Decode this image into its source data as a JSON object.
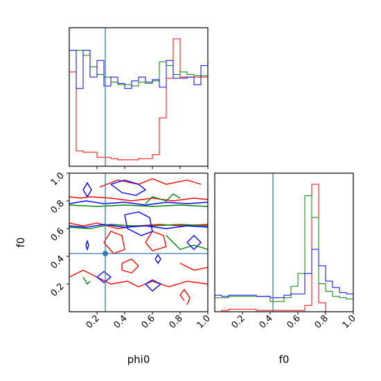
{
  "chart_data": {
    "type": "corner",
    "parameters": [
      "phi0",
      "f0"
    ],
    "colors": {
      "red": "#ff0000",
      "green": "#008000",
      "blue": "#0000ff",
      "truth": "#3a78b5"
    },
    "truth": {
      "phi0": 0.26,
      "f0": 0.42
    },
    "phi0_range": [
      0.0,
      1.0
    ],
    "f0_range": [
      0.0,
      1.0
    ],
    "tick_labels": {
      "phi0": [
        "0.2",
        "0.4",
        "0.6",
        "0.8",
        "1.0"
      ],
      "f0": [
        "0.2",
        "0.4",
        "0.6",
        "0.8",
        "1.0"
      ]
    },
    "hist_phi0": {
      "bins": [
        0.0,
        0.05,
        0.1,
        0.15,
        0.2,
        0.25,
        0.3,
        0.35,
        0.4,
        0.45,
        0.5,
        0.55,
        0.6,
        0.65,
        0.7,
        0.75,
        0.8,
        0.85,
        0.9,
        0.95,
        1.0
      ],
      "series": [
        {
          "color": "red",
          "values": [
            0.74,
            0.12,
            0.11,
            0.11,
            0.07,
            0.07,
            0.06,
            0.05,
            0.05,
            0.05,
            0.06,
            0.06,
            0.09,
            0.38,
            0.69,
            1.0,
            0.7,
            0.7,
            0.7,
            0.7
          ]
        },
        {
          "color": "green",
          "values": [
            0.91,
            0.91,
            0.87,
            0.78,
            0.72,
            0.7,
            0.66,
            0.64,
            0.64,
            0.63,
            0.66,
            0.65,
            0.67,
            0.82,
            0.79,
            0.72,
            0.74,
            0.72,
            0.71,
            0.71
          ]
        },
        {
          "color": "blue",
          "values": [
            0.91,
            0.61,
            0.91,
            0.7,
            0.83,
            0.63,
            0.7,
            0.65,
            0.61,
            0.67,
            0.7,
            0.66,
            0.68,
            0.62,
            0.83,
            0.69,
            0.69,
            0.7,
            0.64,
            0.79
          ]
        }
      ]
    },
    "hist_f0": {
      "bins": [
        0.0,
        0.05,
        0.1,
        0.15,
        0.2,
        0.25,
        0.3,
        0.35,
        0.4,
        0.45,
        0.5,
        0.55,
        0.6,
        0.65,
        0.7,
        0.75,
        0.8,
        0.85,
        0.9,
        0.95,
        1.0
      ],
      "series": [
        {
          "color": "red",
          "values": [
            0.0,
            0.01,
            0.02,
            0.02,
            0.02,
            0.02,
            0.01,
            0.01,
            0.01,
            0.01,
            0.01,
            0.01,
            0.01,
            0.05,
            1.0,
            0.07,
            0.0,
            0.0,
            0.0,
            0.0
          ]
        },
        {
          "color": "green",
          "values": [
            0.11,
            0.11,
            0.12,
            0.12,
            0.12,
            0.12,
            0.12,
            0.12,
            0.08,
            0.08,
            0.11,
            0.2,
            0.3,
            0.91,
            0.74,
            0.22,
            0.16,
            0.12,
            0.11,
            0.1
          ]
        },
        {
          "color": "blue",
          "values": [
            0.13,
            0.12,
            0.13,
            0.13,
            0.13,
            0.13,
            0.12,
            0.12,
            0.11,
            0.11,
            0.13,
            0.14,
            0.14,
            0.3,
            0.49,
            0.36,
            0.24,
            0.19,
            0.15,
            0.14
          ]
        }
      ]
    },
    "contours_2d": [
      {
        "color": "red",
        "lines": [
          [
            [
              0.0,
              0.83
            ],
            [
              0.08,
              0.82
            ],
            [
              0.15,
              0.83
            ],
            [
              0.3,
              0.82
            ],
            [
              0.45,
              0.8
            ],
            [
              0.6,
              0.82
            ],
            [
              0.75,
              0.8
            ],
            [
              0.9,
              0.82
            ],
            [
              1.0,
              0.81
            ]
          ],
          [
            [
              0.0,
              0.64
            ],
            [
              0.1,
              0.62
            ],
            [
              0.2,
              0.64
            ],
            [
              0.35,
              0.6
            ],
            [
              0.5,
              0.62
            ],
            [
              0.65,
              0.63
            ],
            [
              0.8,
              0.62
            ],
            [
              1.0,
              0.63
            ]
          ],
          [
            [
              0.22,
              0.9
            ],
            [
              0.35,
              0.95
            ],
            [
              0.5,
              0.92
            ],
            [
              0.6,
              0.96
            ],
            [
              0.7,
              0.92
            ],
            [
              0.85,
              0.95
            ],
            [
              0.95,
              0.92
            ]
          ],
          [
            [
              0.25,
              0.5
            ],
            [
              0.3,
              0.58
            ],
            [
              0.38,
              0.55
            ],
            [
              0.4,
              0.45
            ],
            [
              0.32,
              0.42
            ],
            [
              0.25,
              0.5
            ]
          ],
          [
            [
              0.38,
              0.35
            ],
            [
              0.45,
              0.38
            ],
            [
              0.5,
              0.33
            ],
            [
              0.45,
              0.28
            ],
            [
              0.38,
              0.3
            ],
            [
              0.38,
              0.35
            ]
          ],
          [
            [
              0.55,
              0.5
            ],
            [
              0.6,
              0.58
            ],
            [
              0.68,
              0.55
            ],
            [
              0.7,
              0.47
            ],
            [
              0.6,
              0.44
            ],
            [
              0.55,
              0.5
            ]
          ],
          [
            [
              0.0,
              0.25
            ],
            [
              0.1,
              0.3
            ],
            [
              0.2,
              0.25
            ],
            [
              0.3,
              0.2
            ],
            [
              0.42,
              0.22
            ],
            [
              0.5,
              0.18
            ],
            [
              0.6,
              0.22
            ],
            [
              0.72,
              0.18
            ],
            [
              0.85,
              0.22
            ],
            [
              1.0,
              0.2
            ]
          ],
          [
            [
              0.8,
              0.35
            ],
            [
              0.9,
              0.3
            ],
            [
              1.0,
              0.32
            ]
          ],
          [
            [
              0.83,
              0.08
            ],
            [
              0.8,
              0.12
            ],
            [
              0.83,
              0.16
            ],
            [
              0.87,
              0.1
            ],
            [
              0.85,
              0.05
            ]
          ]
        ]
      },
      {
        "color": "green",
        "lines": [
          [
            [
              0.0,
              0.77
            ],
            [
              0.2,
              0.76
            ],
            [
              0.4,
              0.77
            ],
            [
              0.6,
              0.76
            ],
            [
              0.8,
              0.77
            ],
            [
              1.0,
              0.76
            ]
          ],
          [
            [
              0.0,
              0.61
            ],
            [
              0.15,
              0.6
            ],
            [
              0.3,
              0.63
            ],
            [
              0.45,
              0.62
            ],
            [
              0.6,
              0.62
            ],
            [
              0.8,
              0.63
            ],
            [
              1.0,
              0.62
            ]
          ],
          [
            [
              0.55,
              0.78
            ],
            [
              0.6,
              0.83
            ],
            [
              0.7,
              0.8
            ],
            [
              0.75,
              0.85
            ],
            [
              0.8,
              0.82
            ]
          ],
          [
            [
              0.7,
              0.55
            ],
            [
              0.75,
              0.5
            ],
            [
              0.8,
              0.45
            ],
            [
              0.9,
              0.48
            ],
            [
              1.0,
              0.45
            ]
          ],
          [
            [
              0.1,
              0.25
            ],
            [
              0.13,
              0.2
            ],
            [
              0.15,
              0.22
            ]
          ]
        ]
      },
      {
        "color": "blue",
        "lines": [
          [
            [
              0.0,
              0.78
            ],
            [
              0.12,
              0.8
            ],
            [
              0.25,
              0.78
            ],
            [
              0.4,
              0.79
            ],
            [
              0.55,
              0.77
            ],
            [
              0.7,
              0.79
            ],
            [
              0.85,
              0.78
            ],
            [
              1.0,
              0.79
            ]
          ],
          [
            [
              0.0,
              0.62
            ],
            [
              0.12,
              0.61
            ],
            [
              0.25,
              0.63
            ],
            [
              0.4,
              0.61
            ],
            [
              0.55,
              0.62
            ],
            [
              0.7,
              0.6
            ],
            [
              0.85,
              0.62
            ],
            [
              1.0,
              0.61
            ]
          ],
          [
            [
              0.1,
              0.88
            ],
            [
              0.13,
              0.93
            ],
            [
              0.16,
              0.88
            ],
            [
              0.13,
              0.83
            ],
            [
              0.1,
              0.88
            ]
          ],
          [
            [
              0.3,
              0.92
            ],
            [
              0.4,
              0.95
            ],
            [
              0.5,
              0.92
            ],
            [
              0.55,
              0.88
            ],
            [
              0.48,
              0.84
            ],
            [
              0.38,
              0.86
            ],
            [
              0.3,
              0.92
            ]
          ],
          [
            [
              0.4,
              0.7
            ],
            [
              0.5,
              0.72
            ],
            [
              0.58,
              0.68
            ],
            [
              0.6,
              0.58
            ],
            [
              0.52,
              0.55
            ],
            [
              0.42,
              0.6
            ],
            [
              0.4,
              0.7
            ]
          ],
          [
            [
              0.62,
              0.38
            ],
            [
              0.64,
              0.35
            ],
            [
              0.66,
              0.38
            ],
            [
              0.64,
              0.41
            ],
            [
              0.62,
              0.38
            ]
          ],
          [
            [
              0.2,
              0.25
            ],
            [
              0.25,
              0.29
            ],
            [
              0.3,
              0.25
            ],
            [
              0.25,
              0.21
            ],
            [
              0.2,
              0.25
            ]
          ],
          [
            [
              0.55,
              0.2
            ],
            [
              0.6,
              0.23
            ],
            [
              0.66,
              0.2
            ],
            [
              0.6,
              0.15
            ],
            [
              0.55,
              0.2
            ]
          ],
          [
            [
              0.85,
              0.5
            ],
            [
              0.9,
              0.45
            ],
            [
              0.95,
              0.5
            ],
            [
              0.9,
              0.55
            ],
            [
              0.85,
              0.5
            ]
          ],
          [
            [
              0.12,
              0.48
            ],
            [
              0.13,
              0.45
            ],
            [
              0.14,
              0.48
            ],
            [
              0.13,
              0.51
            ],
            [
              0.12,
              0.48
            ]
          ]
        ]
      }
    ]
  }
}
